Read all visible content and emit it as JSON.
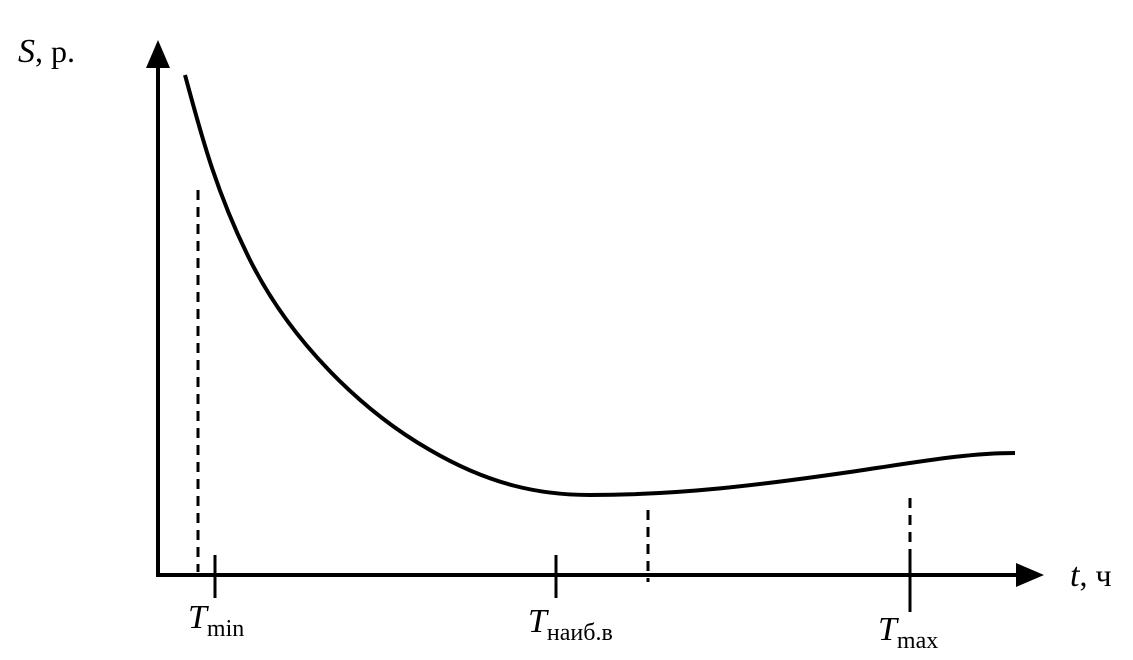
{
  "axes": {
    "y_label": {
      "symbol": "S",
      "rest": ", р."
    },
    "x_label": {
      "symbol": "t",
      "rest": ", ч"
    }
  },
  "ticks": [
    {
      "symbol": "T",
      "subscript": "min"
    },
    {
      "symbol": "T",
      "subscript": "наиб.в"
    },
    {
      "symbol": "T",
      "subscript": "max"
    }
  ]
}
